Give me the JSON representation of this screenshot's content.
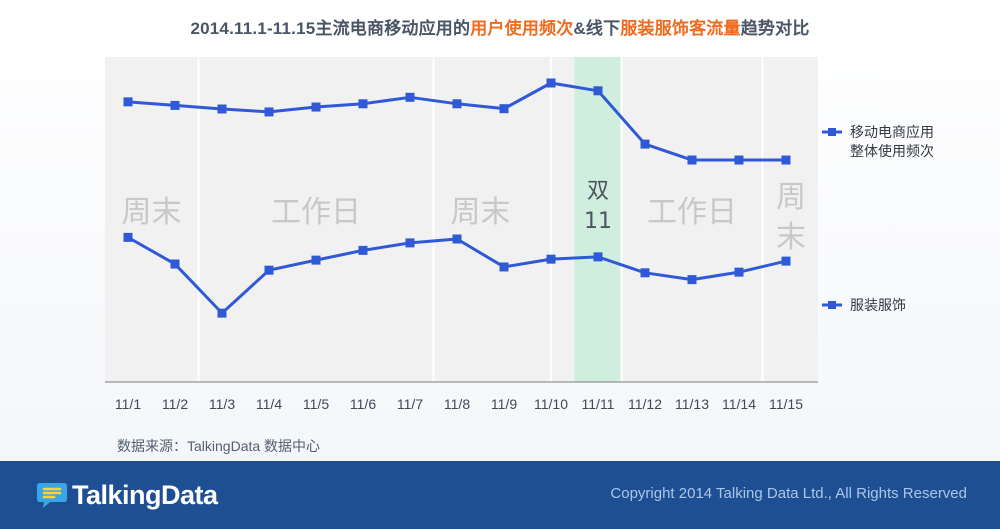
{
  "title": {
    "part1": "2014.11.1-11.15主流电商移动应用的",
    "hl1": "用户使用频次",
    "part2": "&线下",
    "hl2": "服装服饰客流量",
    "part3": "趋势对比"
  },
  "chart_data": {
    "type": "line",
    "categories": [
      "11/1",
      "11/2",
      "11/3",
      "11/4",
      "11/5",
      "11/6",
      "11/7",
      "11/8",
      "11/9",
      "11/10",
      "11/11",
      "11/12",
      "11/13",
      "11/14",
      "11/15"
    ],
    "series": [
      {
        "name": "移动电商应用整体使用频次",
        "name_lines": [
          "移动电商应用",
          "整体使用频次"
        ],
        "color": "#2f59d6",
        "values": [
          86.2,
          85.1,
          84.0,
          83.1,
          84.6,
          85.6,
          87.6,
          85.6,
          84.1,
          92.0,
          89.6,
          73.2,
          68.3,
          68.3,
          68.3
        ]
      },
      {
        "name": "服装服饰",
        "name_lines": [
          "服装服饰"
        ],
        "color": "#2f59d6",
        "values": [
          44.5,
          36.3,
          21.2,
          34.4,
          37.5,
          40.5,
          42.8,
          44.0,
          35.4,
          37.8,
          38.5,
          33.6,
          31.5,
          33.8,
          37.2
        ]
      }
    ],
    "ylim": [
      0,
      100
    ],
    "grid": "vertical",
    "periods": [
      {
        "label": "周末",
        "start": 0,
        "end": 1
      },
      {
        "label": "工作日",
        "start": 2,
        "end": 6
      },
      {
        "label": "周末",
        "start": 7,
        "end": 8
      },
      {
        "label": "双11",
        "start": 10,
        "end": 10,
        "highlight": true
      },
      {
        "label": "工作日",
        "start": 11,
        "end": 13
      },
      {
        "label": "周末",
        "start": 14,
        "end": 14
      }
    ],
    "highlight_color": "#cfeedd",
    "legend_position": "right"
  },
  "source": "数据来源：TalkingData 数据中心",
  "footer": {
    "logo_text": "TalkingData",
    "copyright": "Copyright 2014 Talking Data Ltd., All Rights Reserved"
  }
}
